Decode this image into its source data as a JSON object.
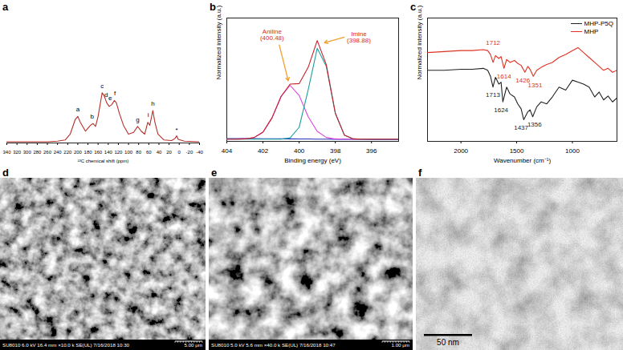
{
  "chart_data": [
    {
      "type": "line",
      "title": "a",
      "xlabel": "¹³C chemical shift (ppm)",
      "xlim": [
        340,
        -40
      ],
      "xticks": [
        340,
        320,
        300,
        280,
        260,
        240,
        220,
        200,
        180,
        160,
        140,
        120,
        100,
        80,
        60,
        40,
        20,
        0,
        -20,
        -40
      ],
      "ylim": [
        0,
        2.2
      ],
      "tick_labels": "x",
      "series": [
        {
          "color": "#b5302a",
          "x": [
            340,
            300,
            260,
            240,
            225,
            215,
            205,
            200,
            195,
            185,
            175,
            170,
            165,
            160,
            152,
            148,
            143,
            138,
            133,
            128,
            124,
            118,
            110,
            100,
            90,
            82,
            75,
            68,
            62,
            58,
            52,
            48,
            42,
            30,
            15,
            8,
            5,
            2,
            -10,
            -40
          ],
          "values": [
            0.02,
            0.02,
            0.02,
            0.03,
            0.05,
            0.15,
            0.4,
            0.45,
            0.35,
            0.2,
            0.3,
            0.33,
            0.28,
            0.45,
            0.85,
            0.8,
            0.68,
            0.62,
            0.65,
            0.72,
            0.68,
            0.5,
            0.3,
            0.15,
            0.18,
            0.28,
            0.2,
            0.15,
            0.35,
            0.3,
            0.55,
            0.35,
            0.15,
            0.05,
            0.04,
            0.08,
            0.12,
            0.06,
            0.03,
            0.02
          ]
        }
      ],
      "annotations": [
        {
          "text": "a",
          "x": 200,
          "y": 0.57
        },
        {
          "text": "b",
          "x": 172,
          "y": 0.45
        },
        {
          "text": "c",
          "x": 152,
          "y": 0.97
        },
        {
          "text": "d",
          "x": 144,
          "y": 0.82
        },
        {
          "text": "e",
          "x": 136,
          "y": 0.76
        },
        {
          "text": "f",
          "x": 127,
          "y": 0.84
        },
        {
          "text": "g",
          "x": 82,
          "y": 0.4
        },
        {
          "text": "i",
          "x": 61,
          "y": 0.47
        },
        {
          "text": "h",
          "x": 52,
          "y": 0.67
        },
        {
          "text": "*",
          "x": 5,
          "y": 0.22
        }
      ]
    },
    {
      "type": "line",
      "title": "b",
      "xlabel": "Binding energy (eV)",
      "ylabel": "Normalized intensity (a.u.)",
      "xlim": [
        404,
        394.5
      ],
      "xticks": [
        404,
        402,
        400,
        398,
        396
      ],
      "ylim": [
        0,
        1.1
      ],
      "tick_labels": "x",
      "series": [
        {
          "color": "#2233bb",
          "x": [
            404,
            403.5,
            403,
            402.5,
            402,
            401.5,
            401,
            400.5,
            400,
            399.5,
            399,
            398.5,
            398,
            397.5,
            397,
            396.5,
            396,
            395.5,
            395,
            394.5
          ],
          "values": [
            0.025,
            0.025,
            0.024,
            0.024,
            0.023,
            0.023,
            0.022,
            0.022,
            0.021,
            0.021,
            0.02,
            0.02,
            0.019,
            0.019,
            0.018,
            0.018,
            0.017,
            0.017,
            0.016,
            0.016
          ]
        },
        {
          "color": "#e040e0",
          "x": [
            404,
            403.5,
            403,
            402.5,
            402,
            401.5,
            401,
            400.5,
            400,
            399.5,
            399,
            398.5,
            398,
            397.5,
            397,
            396.5,
            396,
            395.5,
            395,
            394.5
          ],
          "values": [
            0.02,
            0.02,
            0.022,
            0.033,
            0.082,
            0.21,
            0.4,
            0.5,
            0.41,
            0.22,
            0.089,
            0.035,
            0.022,
            0.02,
            0.02,
            0.02,
            0.02,
            0.02,
            0.02,
            0.02
          ]
        },
        {
          "color": "#1f9e9e",
          "x": [
            404,
            403.5,
            403,
            402.5,
            402,
            401.5,
            401,
            400.5,
            400,
            399.5,
            399,
            398.5,
            398,
            397.5,
            397,
            396.5,
            396,
            395.5,
            395,
            394.5
          ],
          "values": [
            0.02,
            0.02,
            0.02,
            0.02,
            0.02,
            0.02,
            0.02,
            0.031,
            0.125,
            0.46,
            0.83,
            0.67,
            0.25,
            0.056,
            0.022,
            0.02,
            0.02,
            0.02,
            0.02,
            0.02
          ]
        },
        {
          "color": "#c8202a",
          "x": [
            404,
            403.5,
            403,
            402.5,
            402,
            401.5,
            401,
            400.5,
            400,
            399.5,
            399,
            398.5,
            398,
            397.5,
            397,
            396.5,
            396,
            395.5,
            395,
            394.5
          ],
          "values": [
            0.02,
            0.02,
            0.022,
            0.033,
            0.082,
            0.21,
            0.4,
            0.511,
            0.515,
            0.66,
            0.899,
            0.685,
            0.252,
            0.056,
            0.022,
            0.02,
            0.02,
            0.02,
            0.02,
            0.02
          ]
        }
      ],
      "annotations": [
        {
          "text": "Aniline\n(400.48)",
          "x": 401.5,
          "y": 0.95,
          "color": "#e02828",
          "arrow_from": [
            401.1,
            0.86
          ],
          "arrow_to": [
            400.6,
            0.54
          ]
        },
        {
          "text": "Imine\n(398.88)",
          "x": 396.7,
          "y": 0.93,
          "color": "#e02828",
          "arrow_from": [
            397.5,
            0.93
          ],
          "arrow_to": [
            398.6,
            0.88
          ]
        }
      ]
    },
    {
      "type": "line",
      "title": "c",
      "xlabel": "Wavenumber (cm⁻¹)",
      "ylabel": "Normalized intensity (a.u.)",
      "xlim": [
        2300,
        600
      ],
      "xticks": [
        2000,
        1500,
        1000
      ],
      "ylim": [
        0,
        1.25
      ],
      "tick_labels": "x",
      "legend": "top-right",
      "series": [
        {
          "name": "MHP-P5Q",
          "color": "#222222",
          "x": [
            2300,
            2150,
            2000,
            1900,
            1800,
            1760,
            1735,
            1713,
            1690,
            1660,
            1640,
            1624,
            1590,
            1560,
            1520,
            1490,
            1460,
            1437,
            1400,
            1380,
            1356,
            1320,
            1280,
            1230,
            1180,
            1120,
            1060,
            1000,
            950,
            900,
            850,
            800,
            760,
            720,
            680,
            640,
            600
          ],
          "values": [
            0.72,
            0.72,
            0.73,
            0.73,
            0.74,
            0.72,
            0.66,
            0.55,
            0.65,
            0.58,
            0.6,
            0.4,
            0.55,
            0.48,
            0.45,
            0.38,
            0.33,
            0.22,
            0.3,
            0.32,
            0.25,
            0.35,
            0.4,
            0.38,
            0.45,
            0.55,
            0.52,
            0.62,
            0.6,
            0.58,
            0.55,
            0.45,
            0.5,
            0.42,
            0.46,
            0.4,
            0.44
          ]
        },
        {
          "name": "MHP",
          "color": "#e03020",
          "x": [
            2300,
            2150,
            2000,
            1900,
            1800,
            1760,
            1735,
            1712,
            1690,
            1660,
            1640,
            1614,
            1590,
            1560,
            1520,
            1490,
            1460,
            1426,
            1400,
            1380,
            1351,
            1320,
            1280,
            1230,
            1180,
            1120,
            1060,
            1000,
            950,
            900,
            850,
            800,
            760,
            720,
            680,
            640,
            600
          ],
          "values": [
            0.9,
            0.91,
            0.92,
            0.92,
            0.93,
            0.92,
            0.88,
            0.8,
            0.87,
            0.84,
            0.86,
            0.74,
            0.83,
            0.8,
            0.82,
            0.79,
            0.77,
            0.7,
            0.76,
            0.73,
            0.66,
            0.72,
            0.75,
            0.78,
            0.8,
            0.85,
            0.88,
            0.92,
            0.95,
            0.9,
            0.85,
            0.8,
            0.76,
            0.72,
            0.74,
            0.7,
            0.72
          ]
        }
      ],
      "annotations": [
        {
          "text": "1712",
          "x": 1712,
          "y": 1.0,
          "color": "#e03020"
        },
        {
          "text": "1614",
          "x": 1614,
          "y": 0.66,
          "color": "#e03020"
        },
        {
          "text": "1426",
          "x": 1445,
          "y": 0.62,
          "color": "#e03020"
        },
        {
          "text": "1351",
          "x": 1335,
          "y": 0.57,
          "color": "#e03020"
        },
        {
          "text": "1713",
          "x": 1713,
          "y": 0.47,
          "color": "#222222"
        },
        {
          "text": "1624",
          "x": 1640,
          "y": 0.32,
          "color": "#222222"
        },
        {
          "text": "1437",
          "x": 1460,
          "y": 0.14,
          "color": "#222222"
        },
        {
          "text": "1356",
          "x": 1340,
          "y": 0.17,
          "color": "#222222"
        }
      ]
    }
  ],
  "images": [
    {
      "title": "d",
      "footer": "SU8010 6.0 kV 16.4 mm ×10.0 k SE(UL) 7/16/2018 10:30",
      "scale_bar": "5.00 μm"
    },
    {
      "title": "e",
      "footer": "SU8010 5.0 kV 5.6 mm ×40.0 k SE(UL) 7/16/2018 10:47",
      "scale_bar": "1.00 μm"
    },
    {
      "title": "f",
      "scale_bar": "50 nm"
    }
  ]
}
